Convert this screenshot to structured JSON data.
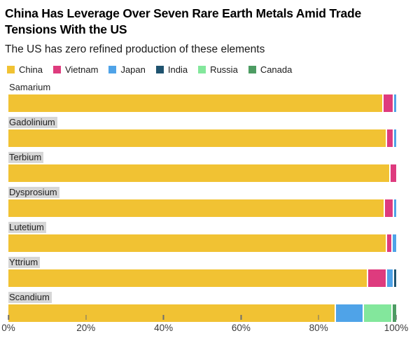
{
  "chart_data": {
    "type": "bar",
    "orientation": "horizontal",
    "stacked": true,
    "unit": "%",
    "title": "China Has Leverage Over Seven Rare Earth Metals Amid Trade Tensions With the US",
    "subtitle": "The US has zero refined production of these elements",
    "legend_position": "top",
    "grid": false,
    "label_highlight_color": "#D6D6D6",
    "legend": [
      {
        "name": "China",
        "color": "#F1C233"
      },
      {
        "name": "Vietnam",
        "color": "#DE3B7E"
      },
      {
        "name": "Japan",
        "color": "#4FA3E8"
      },
      {
        "name": "India",
        "color": "#1F536F"
      },
      {
        "name": "Russia",
        "color": "#83E79C"
      },
      {
        "name": "Canada",
        "color": "#4D9C63"
      }
    ],
    "categories": [
      {
        "label": "Samarium",
        "label_highlighted": false
      },
      {
        "label": "Gadolinium",
        "label_highlighted": true
      },
      {
        "label": "Terbium",
        "label_highlighted": true
      },
      {
        "label": "Dysprosium",
        "label_highlighted": true
      },
      {
        "label": "Lutetium",
        "label_highlighted": true
      },
      {
        "label": "Yttrium",
        "label_highlighted": true
      },
      {
        "label": "Scandium",
        "label_highlighted": true
      }
    ],
    "series": [
      {
        "name": "China",
        "values": [
          97,
          98,
          98.5,
          97.5,
          98,
          93.5,
          85
        ]
      },
      {
        "name": "Vietnam",
        "values": [
          2.5,
          1.5,
          1.5,
          2,
          1,
          4.5,
          0
        ]
      },
      {
        "name": "Japan",
        "values": [
          0.5,
          0.5,
          0,
          0.5,
          1,
          1.5,
          7
        ]
      },
      {
        "name": "India",
        "values": [
          0,
          0,
          0,
          0,
          0,
          0.5,
          0
        ]
      },
      {
        "name": "Russia",
        "values": [
          0,
          0,
          0,
          0,
          0,
          0,
          7
        ]
      },
      {
        "name": "Canada",
        "values": [
          0,
          0,
          0,
          0,
          0,
          0,
          1
        ]
      }
    ],
    "x_ticks": [
      {
        "label": "0%",
        "value": 0
      },
      {
        "label": "20%",
        "value": 20
      },
      {
        "label": "40%",
        "value": 40
      },
      {
        "label": "60%",
        "value": 60
      },
      {
        "label": "80%",
        "value": 80
      },
      {
        "label": "100%",
        "value": 100
      }
    ],
    "xlim": [
      0,
      100
    ]
  }
}
